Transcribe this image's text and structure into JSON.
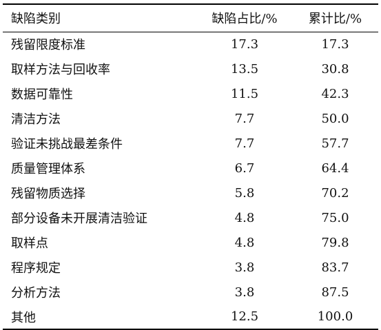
{
  "table": {
    "headers": {
      "category": "缺陷类别",
      "share": "缺陷占比/%",
      "cumulative": "累计比/%"
    },
    "rows": [
      {
        "category": "残留限度标准",
        "share": "17.3",
        "cumulative": "17.3"
      },
      {
        "category": "取样方法与回收率",
        "share": "13.5",
        "cumulative": "30.8"
      },
      {
        "category": "数据可靠性",
        "share": "11.5",
        "cumulative": "42.3"
      },
      {
        "category": "清洁方法",
        "share": "7.7",
        "cumulative": "50.0"
      },
      {
        "category": "验证未挑战最差条件",
        "share": "7.7",
        "cumulative": "57.7"
      },
      {
        "category": "质量管理体系",
        "share": "6.7",
        "cumulative": "64.4"
      },
      {
        "category": "残留物质选择",
        "share": "5.8",
        "cumulative": "70.2"
      },
      {
        "category": "部分设备未开展清洁验证",
        "share": "4.8",
        "cumulative": "75.0"
      },
      {
        "category": "取样点",
        "share": "4.8",
        "cumulative": "79.8"
      },
      {
        "category": "程序规定",
        "share": "3.8",
        "cumulative": "83.7"
      },
      {
        "category": "分析方法",
        "share": "3.8",
        "cumulative": "87.5"
      },
      {
        "category": "其他",
        "share": "12.5",
        "cumulative": "100.0"
      }
    ]
  }
}
